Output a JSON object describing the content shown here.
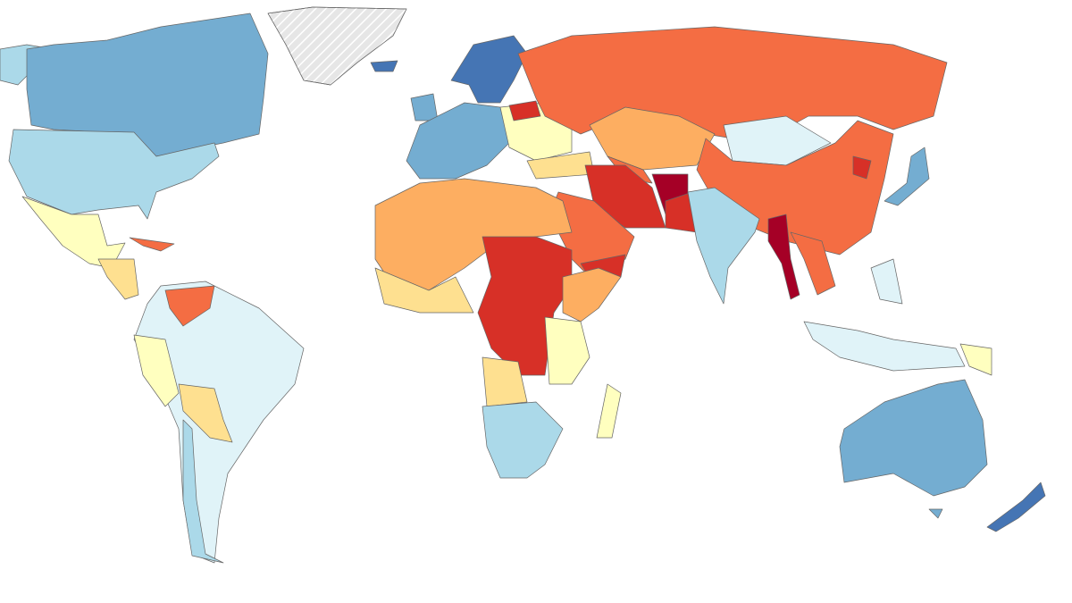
{
  "map": {
    "regions": [
      {
        "color": "#abd9e9"
      },
      {
        "color": "#74add1"
      },
      {
        "color": "#abd9e9"
      },
      {
        "color": "#ffffbf"
      },
      {
        "color": "#fee090"
      },
      {
        "color": "#f46d43"
      },
      {
        "color": "#e6e6e6"
      },
      {
        "color": "#4575b4"
      },
      {
        "color": "#e0f3f8"
      },
      {
        "color": "#f46d43"
      },
      {
        "color": "#ffffbf"
      },
      {
        "color": "#fee090"
      },
      {
        "color": "#abd9e9"
      },
      {
        "color": "#4575b4"
      },
      {
        "color": "#74add1"
      },
      {
        "color": "#74add1"
      },
      {
        "color": "#ffffbf"
      },
      {
        "color": "#d73027"
      },
      {
        "color": "#fee090"
      },
      {
        "color": "#f46d43"
      },
      {
        "color": "#fdae61"
      },
      {
        "color": "#f46d43"
      },
      {
        "color": "#e0f3f8"
      },
      {
        "color": "#f46d43"
      },
      {
        "color": "#d73027"
      },
      {
        "color": "#74add1"
      },
      {
        "color": "#d73027"
      },
      {
        "color": "#a50026"
      },
      {
        "color": "#d73027"
      },
      {
        "color": "#abd9e9"
      },
      {
        "color": "#a50026"
      },
      {
        "color": "#f46d43"
      },
      {
        "color": "#f46d43"
      },
      {
        "color": "#d73027"
      },
      {
        "color": "#fdae61"
      },
      {
        "color": "#d73027"
      },
      {
        "color": "#fdae61"
      },
      {
        "color": "#ffffbf"
      },
      {
        "color": "#fee090"
      },
      {
        "color": "#abd9e9"
      },
      {
        "color": "#ffffbf"
      },
      {
        "color": "#fee090"
      },
      {
        "color": "#e0f3f8"
      },
      {
        "color": "#ffffbf"
      },
      {
        "color": "#e0f3f8"
      },
      {
        "color": "#74add1"
      },
      {
        "color": "#4575b4"
      },
      {
        "color": "#74add1"
      }
    ]
  }
}
